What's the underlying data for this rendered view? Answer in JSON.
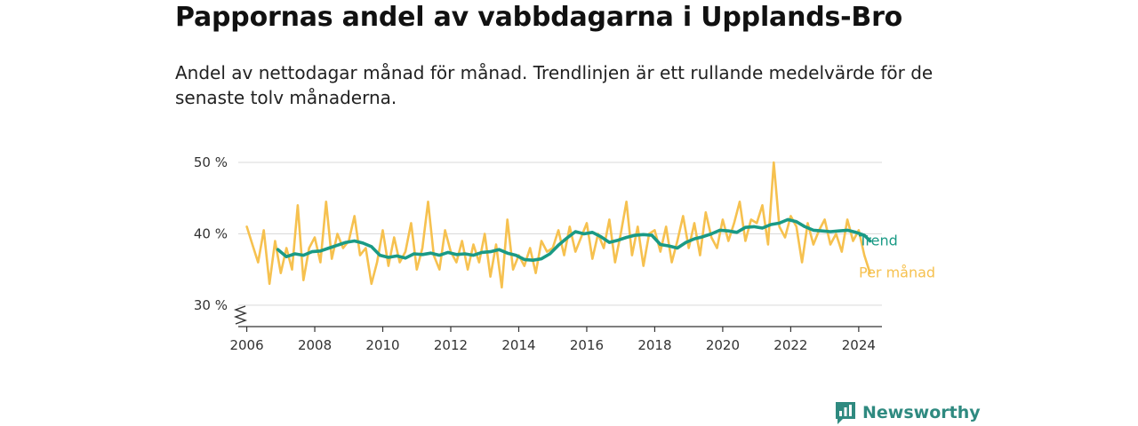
{
  "page": {
    "title": "Pappornas andel av vabbdagarna i Upplands-Bro",
    "subtitle": "Andel av nettodagar månad för månad. Trendlinjen är ett rullande medelvärde för de senaste tolv månaderna."
  },
  "brand": {
    "name": "Newsworthy",
    "icon": "newsworthy-logo-icon",
    "color": "#2f8a80"
  },
  "chart_data": {
    "type": "line",
    "xlim": [
      "2006-01",
      "2024-05"
    ],
    "ylim": [
      27,
      51
    ],
    "y_ticks": [
      30,
      40,
      50
    ],
    "y_tick_labels": [
      "30 %",
      "40 %",
      "50 %"
    ],
    "y_axis_break": true,
    "x_ticks": [
      2006,
      2008,
      2010,
      2012,
      2014,
      2016,
      2018,
      2020,
      2022,
      2024
    ],
    "x_tick_labels": [
      "2006",
      "2008",
      "2010",
      "2012",
      "2014",
      "2016",
      "2018",
      "2020",
      "2022",
      "2024"
    ],
    "grid": true,
    "legend": "inline labels at line ends (right)",
    "series": [
      {
        "name": "Per månad",
        "color": "#f6c14f",
        "x": [
          "2006-01",
          "2006-03",
          "2006-05",
          "2006-07",
          "2006-09",
          "2006-11",
          "2007-01",
          "2007-03",
          "2007-05",
          "2007-07",
          "2007-09",
          "2007-11",
          "2008-01",
          "2008-03",
          "2008-05",
          "2008-07",
          "2008-09",
          "2008-11",
          "2009-01",
          "2009-03",
          "2009-05",
          "2009-07",
          "2009-09",
          "2009-11",
          "2010-01",
          "2010-03",
          "2010-05",
          "2010-07",
          "2010-09",
          "2010-11",
          "2011-01",
          "2011-03",
          "2011-05",
          "2011-07",
          "2011-09",
          "2011-11",
          "2012-01",
          "2012-03",
          "2012-05",
          "2012-07",
          "2012-09",
          "2012-11",
          "2013-01",
          "2013-03",
          "2013-05",
          "2013-07",
          "2013-09",
          "2013-11",
          "2014-01",
          "2014-03",
          "2014-05",
          "2014-07",
          "2014-09",
          "2014-11",
          "2015-01",
          "2015-03",
          "2015-05",
          "2015-07",
          "2015-09",
          "2015-11",
          "2016-01",
          "2016-03",
          "2016-05",
          "2016-07",
          "2016-09",
          "2016-11",
          "2017-01",
          "2017-03",
          "2017-05",
          "2017-07",
          "2017-09",
          "2017-11",
          "2018-01",
          "2018-03",
          "2018-05",
          "2018-07",
          "2018-09",
          "2018-11",
          "2019-01",
          "2019-03",
          "2019-05",
          "2019-07",
          "2019-09",
          "2019-11",
          "2020-01",
          "2020-03",
          "2020-05",
          "2020-07",
          "2020-09",
          "2020-11",
          "2021-01",
          "2021-03",
          "2021-05",
          "2021-07",
          "2021-09",
          "2021-11",
          "2022-01",
          "2022-03",
          "2022-05",
          "2022-07",
          "2022-09",
          "2022-11",
          "2023-01",
          "2023-03",
          "2023-05",
          "2023-07",
          "2023-09",
          "2023-11",
          "2024-01",
          "2024-03",
          "2024-05"
        ],
        "values": [
          41,
          38.5,
          36,
          40.5,
          33,
          39,
          34.5,
          38,
          35,
          44,
          33.5,
          38,
          39.5,
          36,
          44.5,
          36.5,
          40,
          38,
          39,
          42.5,
          37,
          38,
          33,
          36,
          40.5,
          35.5,
          39.5,
          36,
          37.5,
          41.5,
          35,
          38,
          44.5,
          37,
          35,
          40.5,
          37.5,
          36,
          39,
          35,
          38.5,
          36,
          40,
          34,
          38.5,
          32.5,
          42,
          35,
          37,
          35.5,
          38,
          34.5,
          39,
          37.5,
          38,
          40.5,
          37,
          41,
          37.5,
          39.5,
          41.5,
          36.5,
          40,
          38,
          42,
          36,
          40,
          44.5,
          37,
          41,
          35.5,
          40,
          40.5,
          37.5,
          41,
          36,
          39,
          42.5,
          38,
          41.5,
          37,
          43,
          39.5,
          38,
          42,
          39,
          41.5,
          44.5,
          39,
          42,
          41.5,
          44,
          38.5,
          50,
          41,
          39.5,
          42.5,
          41,
          36,
          41.5,
          38.5,
          40.5,
          42,
          38.5,
          40,
          37.5,
          42,
          39,
          40.5,
          37,
          34.5
        ]
      },
      {
        "name": "Trend",
        "color": "#1a9a85",
        "x": [
          "2006-12",
          "2007-03",
          "2007-06",
          "2007-09",
          "2007-12",
          "2008-03",
          "2008-06",
          "2008-09",
          "2008-12",
          "2009-03",
          "2009-06",
          "2009-09",
          "2009-12",
          "2010-03",
          "2010-06",
          "2010-09",
          "2010-12",
          "2011-03",
          "2011-06",
          "2011-09",
          "2011-12",
          "2012-03",
          "2012-06",
          "2012-09",
          "2012-12",
          "2013-03",
          "2013-06",
          "2013-09",
          "2013-12",
          "2014-03",
          "2014-06",
          "2014-09",
          "2014-12",
          "2015-03",
          "2015-06",
          "2015-09",
          "2015-12",
          "2016-03",
          "2016-06",
          "2016-09",
          "2016-12",
          "2017-03",
          "2017-06",
          "2017-09",
          "2017-12",
          "2018-03",
          "2018-06",
          "2018-09",
          "2018-12",
          "2019-03",
          "2019-06",
          "2019-09",
          "2019-12",
          "2020-03",
          "2020-06",
          "2020-09",
          "2020-12",
          "2021-03",
          "2021-06",
          "2021-09",
          "2021-12",
          "2022-03",
          "2022-06",
          "2022-09",
          "2022-12",
          "2023-03",
          "2023-06",
          "2023-09",
          "2023-12",
          "2024-03",
          "2024-05"
        ],
        "values": [
          37.8,
          36.8,
          37.2,
          37.0,
          37.5,
          37.6,
          38.0,
          38.4,
          38.8,
          39.0,
          38.7,
          38.2,
          37.0,
          36.7,
          36.9,
          36.6,
          37.2,
          37.1,
          37.3,
          37.0,
          37.4,
          37.1,
          37.2,
          37.0,
          37.4,
          37.5,
          37.8,
          37.3,
          37.0,
          36.4,
          36.3,
          36.5,
          37.2,
          38.4,
          39.4,
          40.3,
          40.0,
          40.2,
          39.6,
          38.8,
          39.1,
          39.5,
          39.8,
          39.9,
          39.8,
          38.5,
          38.3,
          38.0,
          38.8,
          39.3,
          39.6,
          40.0,
          40.5,
          40.4,
          40.2,
          40.9,
          41.0,
          40.8,
          41.3,
          41.5,
          42.0,
          41.7,
          41.0,
          40.5,
          40.4,
          40.3,
          40.4,
          40.5,
          40.2,
          39.8,
          39.0
        ]
      }
    ]
  }
}
